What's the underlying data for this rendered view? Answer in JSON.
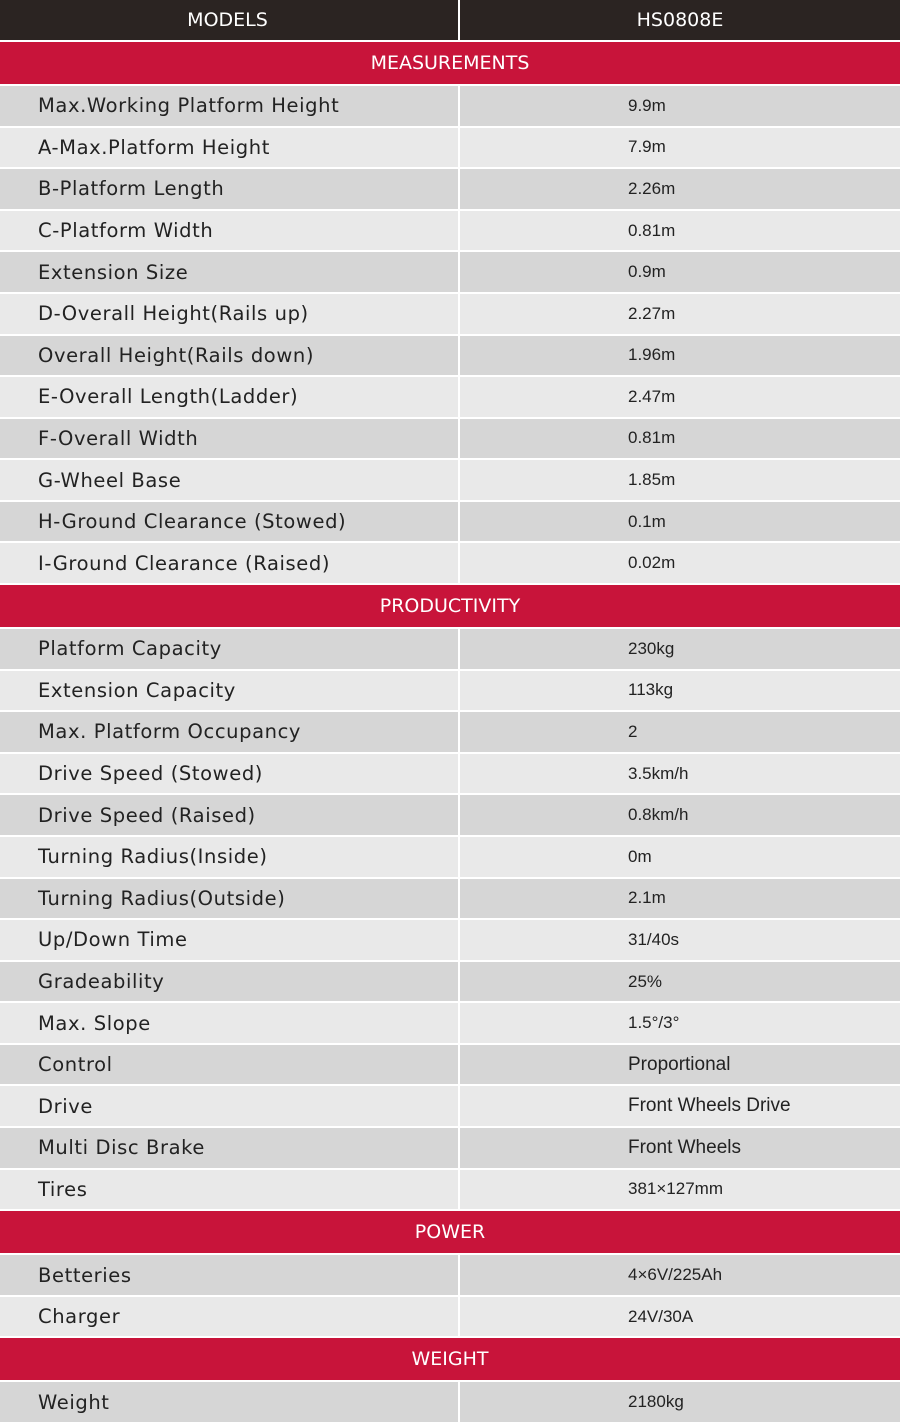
{
  "header": {
    "label": "MODELS",
    "model": "HS0808E"
  },
  "sections": [
    {
      "title": "MEASUREMENTS",
      "rows": [
        [
          "Max.Working Platform Height",
          "9.9m"
        ],
        [
          "A-Max.Platform Height",
          "7.9m"
        ],
        [
          "B-Platform Length",
          "2.26m"
        ],
        [
          "C-Platform Width",
          "0.81m"
        ],
        [
          "Extension Size",
          "0.9m"
        ],
        [
          "D-Overall Height(Rails up)",
          "2.27m"
        ],
        [
          "Overall Height(Rails down)",
          "1.96m"
        ],
        [
          "E-Overall Length(Ladder)",
          "2.47m"
        ],
        [
          "F-Overall Width",
          "0.81m"
        ],
        [
          "G-Wheel Base",
          "1.85m"
        ],
        [
          "H-Ground Clearance (Stowed)",
          "0.1m"
        ],
        [
          "I-Ground Clearance (Raised)",
          "0.02m"
        ]
      ]
    },
    {
      "title": "PRODUCTIVITY",
      "rows": [
        [
          "Platform Capacity",
          "230kg"
        ],
        [
          "Extension Capacity",
          "113kg"
        ],
        [
          "Max. Platform Occupancy",
          "2"
        ],
        [
          "Drive Speed (Stowed)",
          "3.5km/h"
        ],
        [
          "Drive Speed (Raised)",
          "0.8km/h"
        ],
        [
          "Turning Radius(Inside)",
          "0m"
        ],
        [
          "Turning Radius(Outside)",
          "2.1m"
        ],
        [
          "Up/Down Time",
          "31/40s"
        ],
        [
          "Gradeability",
          "25%"
        ],
        [
          "Max. Slope",
          "1.5°/3°"
        ],
        [
          "Control",
          "Proportional"
        ],
        [
          "Drive",
          "Front Wheels Drive"
        ],
        [
          "Multi Disc Brake",
          "Front Wheels"
        ],
        [
          "Tires",
          "381×127mm"
        ]
      ]
    },
    {
      "title": "POWER",
      "rows": [
        [
          "Betteries",
          "4×6V/225Ah"
        ],
        [
          "Charger",
          "24V/30A"
        ]
      ]
    },
    {
      "title": "WEIGHT",
      "rows": [
        [
          "Weight",
          "2180kg"
        ]
      ]
    }
  ]
}
